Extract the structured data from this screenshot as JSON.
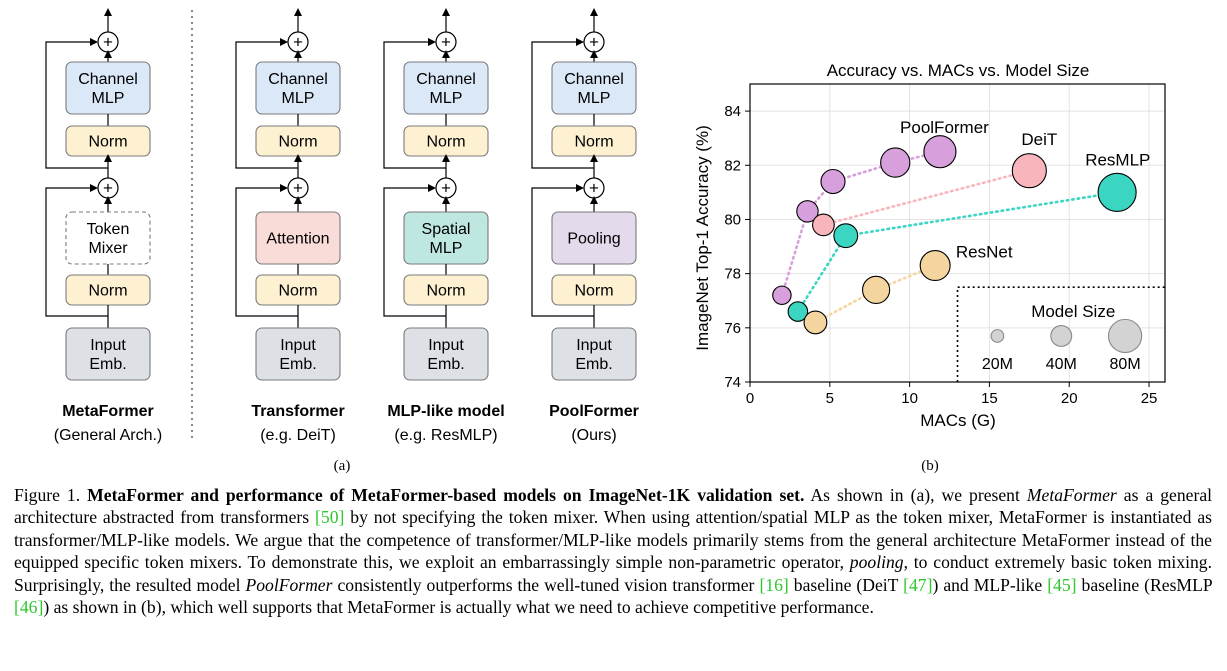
{
  "architectures": [
    {
      "id": "metaformer",
      "top_block": "Channel\nMLP",
      "norm_top": "Norm",
      "mixer": "Token\nMixer",
      "norm_bottom": "Norm",
      "embed": "Input\nEmb.",
      "name": "MetaFormer",
      "subtitle": "(General Arch.)",
      "mixer_color": "#ffffff"
    },
    {
      "id": "transformer",
      "top_block": "Channel\nMLP",
      "norm_top": "Norm",
      "mixer": "Attention",
      "norm_bottom": "Norm",
      "embed": "Input\nEmb.",
      "name": "Transformer",
      "subtitle": "(e.g. DeiT)",
      "mixer_color": "#f9dcd8"
    },
    {
      "id": "mlp-like",
      "top_block": "Channel\nMLP",
      "norm_top": "Norm",
      "mixer": "Spatial\nMLP",
      "norm_bottom": "Norm",
      "embed": "Input\nEmb.",
      "name": "MLP-like model",
      "subtitle": "(e.g. ResMLP)",
      "mixer_color": "#bfe7e2"
    },
    {
      "id": "poolformer",
      "top_block": "Channel\nMLP",
      "norm_top": "Norm",
      "mixer": "Pooling",
      "norm_bottom": "Norm",
      "embed": "Input\nEmb.",
      "name": "PoolFormer",
      "subtitle": "(Ours)",
      "mixer_color": "#e3dbeb"
    }
  ],
  "add_symbol": "+",
  "panel_a_label": "(a)",
  "panel_b_label": "(b)",
  "colors": {
    "channel_mlp": "#dbe8f8",
    "norm": "#fdf1d2",
    "embed": "#dde1e6",
    "box_stroke": "#7a7a7a"
  },
  "chart_data": {
    "type": "scatter",
    "title": "Accuracy vs. MACs vs. Model Size",
    "xlabel": "MACs (G)",
    "ylabel": "ImageNet Top-1 Accuracy (%)",
    "xlim": [
      0,
      26
    ],
    "ylim": [
      74,
      85
    ],
    "xticks": [
      0,
      5,
      10,
      15,
      20,
      25
    ],
    "yticks": [
      74,
      76,
      78,
      80,
      82,
      84
    ],
    "grid": true,
    "series": [
      {
        "name": "PoolFormer",
        "color": "#d7a0dc",
        "points": [
          {
            "x": 2.0,
            "y": 77.2,
            "size_m": 12
          },
          {
            "x": 3.6,
            "y": 80.3,
            "size_m": 21
          },
          {
            "x": 5.2,
            "y": 81.4,
            "size_m": 31
          },
          {
            "x": 9.1,
            "y": 82.1,
            "size_m": 56
          },
          {
            "x": 11.9,
            "y": 82.5,
            "size_m": 73
          }
        ]
      },
      {
        "name": "DeiT",
        "color": "#f8b6bc",
        "points": [
          {
            "x": 4.6,
            "y": 79.8,
            "size_m": 22
          },
          {
            "x": 17.5,
            "y": 81.8,
            "size_m": 86
          }
        ]
      },
      {
        "name": "ResMLP",
        "color": "#3ad6c2",
        "points": [
          {
            "x": 3.0,
            "y": 76.6,
            "size_m": 15
          },
          {
            "x": 6.0,
            "y": 79.4,
            "size_m": 30
          },
          {
            "x": 23.0,
            "y": 81.0,
            "size_m": 116
          }
        ]
      },
      {
        "name": "ResNet",
        "color": "#f5d59f",
        "points": [
          {
            "x": 4.1,
            "y": 76.2,
            "size_m": 26
          },
          {
            "x": 7.9,
            "y": 77.4,
            "size_m": 45
          },
          {
            "x": 11.6,
            "y": 78.3,
            "size_m": 60
          }
        ]
      }
    ],
    "legend": {
      "title": "Model Size",
      "entries": [
        {
          "label": "20M",
          "size_m": 20
        },
        {
          "label": "40M",
          "size_m": 40
        },
        {
          "label": "80M",
          "size_m": 80
        }
      ],
      "placement": "bottom-right"
    }
  },
  "caption": {
    "figure_label": "Figure 1.",
    "bold_title": "MetaFormer and performance of MetaFormer-based models on ImageNet-1K validation set.",
    "s1": "As shown in (a), we present",
    "s1_it": "MetaFormer",
    "s2": "as a general architecture abstracted from transformers",
    "ref1": "[50]",
    "s3": "by not specifying the token mixer. When using attention/spatial MLP as the token mixer, MetaFormer is instantiated as transformer/MLP-like models. We argue that the competence of transformer/MLP-like models primarily stems from the general architecture MetaFormer instead of the equipped specific token mixers. To demonstrate this, we exploit an embarrassingly simple non-parametric operator,",
    "s3_it": "pooling",
    "s4": ", to conduct extremely basic token mixing. Surprisingly, the resulted model",
    "s4_it": "PoolFormer",
    "s5": "consistently outperforms the well-tuned vision transformer",
    "ref2": "[16]",
    "s6": "baseline (DeiT",
    "ref3": "[47]",
    "s7": ") and MLP-like",
    "ref4": "[45]",
    "s8": "baseline (ResMLP",
    "ref5": "[46]",
    "s9": ") as shown in (b), which well supports that MetaFormer is actually what we need to achieve competitive performance."
  }
}
